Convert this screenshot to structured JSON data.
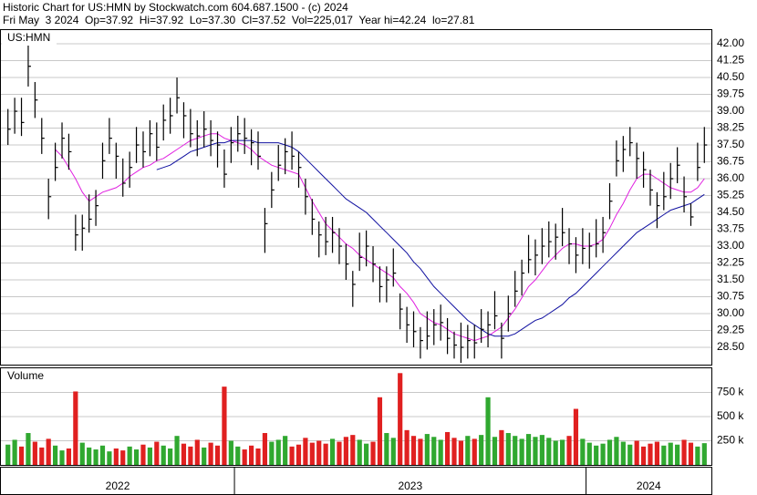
{
  "chart_data": {
    "type": "ohlc",
    "title": "Historic Chart for US:HMN by Stockwatch.com 604.687.1500 - (c) 2024",
    "subtitle": "Fri May  3 2024  Op=37.92  Hi=37.92  Lo=37.30  Cl=37.52  Vol=225,017  Year hi=42.24  lo=27.81",
    "symbol": "US:HMN",
    "high": [
      39.1,
      39.6,
      39.6,
      42.24,
      40.3,
      38.7,
      36.0,
      37.6,
      38.5,
      38.0,
      34.4,
      34.4,
      35.3,
      35.5,
      37.6,
      38.7,
      37.6,
      36.9,
      37.2,
      38.3,
      38.1,
      38.6,
      38.5,
      39.3,
      39.6,
      40.5,
      39.4,
      39.1,
      38.6,
      39.0,
      38.6,
      38.1,
      37.3,
      38.3,
      38.8,
      38.7,
      38.2,
      38.1,
      34.7,
      36.3,
      37.5,
      37.8,
      38.1,
      37.2,
      36.0,
      35.1,
      34.1,
      34.3,
      34.3,
      33.8,
      33.1,
      31.9,
      33.6,
      33.7,
      33.0,
      32.1,
      32.1,
      32.9,
      30.9,
      30.3,
      30.1,
      29.4,
      30.1,
      30.2,
      30.4,
      29.8,
      29.2,
      29.6,
      29.5,
      29.5,
      30.2,
      30.1,
      31.0,
      29.6,
      30.8,
      31.9,
      32.4,
      33.5,
      33.3,
      33.8,
      34.1,
      34.0,
      34.7,
      33.8,
      33.4,
      33.8,
      33.6,
      34.2,
      34.3,
      35.8,
      37.7,
      37.9,
      38.3,
      37.6,
      37.2,
      36.4,
      35.4,
      36.3,
      36.7,
      37.4,
      36.1,
      34.9,
      37.6,
      38.3
    ],
    "low": [
      37.5,
      38.0,
      37.9,
      40.1,
      38.7,
      37.1,
      34.2,
      35.9,
      36.9,
      36.4,
      32.8,
      32.8,
      33.6,
      33.9,
      36.0,
      37.1,
      36.0,
      35.2,
      35.6,
      36.7,
      36.5,
      37.0,
      36.8,
      37.7,
      38.0,
      38.9,
      37.8,
      37.4,
      37.0,
      37.4,
      37.0,
      36.5,
      35.6,
      36.7,
      37.2,
      37.1,
      36.6,
      36.4,
      32.7,
      34.7,
      35.9,
      36.2,
      36.4,
      35.6,
      34.4,
      33.5,
      32.5,
      32.6,
      32.7,
      32.2,
      31.5,
      30.3,
      31.9,
      32.1,
      31.4,
      30.5,
      30.5,
      31.2,
      29.3,
      28.7,
      28.5,
      28.0,
      28.4,
      28.6,
      28.8,
      28.2,
      28.0,
      27.81,
      28.0,
      28.0,
      28.7,
      28.5,
      29.3,
      28.0,
      29.2,
      30.3,
      30.8,
      31.8,
      31.7,
      32.2,
      32.5,
      32.4,
      33.0,
      32.2,
      31.8,
      32.2,
      32.0,
      32.5,
      32.7,
      34.2,
      36.1,
      36.3,
      37.0,
      36.0,
      35.6,
      34.8,
      33.8,
      34.6,
      35.1,
      35.8,
      34.5,
      33.9,
      35.9,
      36.7
    ],
    "close": [
      38.2,
      39.0,
      38.5,
      41.0,
      39.5,
      37.8,
      35.2,
      36.5,
      37.8,
      37.2,
      33.5,
      33.8,
      34.2,
      34.8,
      36.8,
      37.8,
      37.0,
      35.8,
      36.5,
      37.5,
      37.2,
      38.0,
      37.4,
      38.6,
      38.8,
      39.6,
      38.8,
      38.0,
      37.9,
      38.2,
      37.7,
      37.5,
      36.2,
      37.6,
      38.0,
      37.8,
      37.6,
      37.0,
      34.0,
      35.5,
      36.6,
      37.2,
      37.0,
      36.5,
      35.2,
      34.2,
      33.5,
      33.2,
      33.6,
      33.0,
      32.2,
      31.3,
      32.5,
      33.0,
      32.2,
      31.2,
      31.5,
      31.8,
      30.2,
      29.5,
      29.2,
      28.8,
      29.0,
      29.5,
      29.6,
      28.9,
      28.6,
      28.5,
      28.8,
      28.7,
      29.3,
      29.5,
      29.9,
      28.9,
      30.0,
      31.0,
      31.8,
      32.4,
      32.6,
      33.0,
      33.2,
      33.4,
      33.6,
      33.1,
      32.6,
      32.9,
      33.0,
      33.1,
      33.6,
      35.0,
      36.8,
      37.3,
      37.6,
      36.9,
      36.4,
      35.5,
      34.8,
      35.2,
      36.0,
      36.6,
      35.2,
      34.3,
      36.5,
      37.5
    ],
    "bar_color": "#000000",
    "series": [
      {
        "color": "#e020e0",
        "values": [
          null,
          null,
          null,
          null,
          null,
          null,
          null,
          37.3,
          37.0,
          36.5,
          36.0,
          35.4,
          35.0,
          35.2,
          35.4,
          35.5,
          35.6,
          35.8,
          36.1,
          36.3,
          36.5,
          36.6,
          36.8,
          36.9,
          37.1,
          37.3,
          37.5,
          37.7,
          37.8,
          37.9,
          38.0,
          38.0,
          37.8,
          37.7,
          37.6,
          37.5,
          37.3,
          37.0,
          36.8,
          36.6,
          36.5,
          36.4,
          36.3,
          36.2,
          35.6,
          35.0,
          34.5,
          34.0,
          33.7,
          33.4,
          33.1,
          32.9,
          32.6,
          32.4,
          32.2,
          32.0,
          31.8,
          31.6,
          31.2,
          30.9,
          30.5,
          30.0,
          29.8,
          29.6,
          29.5,
          29.3,
          29.1,
          29.0,
          28.9,
          28.8,
          28.9,
          29.0,
          29.2,
          29.4,
          29.8,
          30.2,
          30.7,
          31.2,
          31.5,
          31.9,
          32.3,
          32.6,
          32.9,
          33.1,
          33.1,
          33.0,
          33.0,
          33.1,
          33.3,
          33.8,
          34.4,
          34.9,
          35.5,
          36.0,
          36.2,
          36.2,
          36.0,
          35.8,
          35.6,
          35.5,
          35.4,
          35.4,
          35.6,
          36.0
        ]
      },
      {
        "color": "#1010a0",
        "values": [
          null,
          null,
          null,
          null,
          null,
          null,
          null,
          null,
          null,
          null,
          null,
          null,
          null,
          null,
          null,
          null,
          null,
          null,
          null,
          null,
          null,
          null,
          36.4,
          36.5,
          36.6,
          36.8,
          37.0,
          37.2,
          37.3,
          37.4,
          37.5,
          37.6,
          37.6,
          37.7,
          37.7,
          37.7,
          37.7,
          37.6,
          37.6,
          37.6,
          37.6,
          37.5,
          37.4,
          37.2,
          36.9,
          36.6,
          36.3,
          36.0,
          35.7,
          35.4,
          35.1,
          34.9,
          34.7,
          34.5,
          34.2,
          33.9,
          33.6,
          33.3,
          33.0,
          32.7,
          32.3,
          32.0,
          31.6,
          31.2,
          30.9,
          30.6,
          30.3,
          30.0,
          29.7,
          29.5,
          29.3,
          29.1,
          29.0,
          29.0,
          29.0,
          29.1,
          29.3,
          29.5,
          29.7,
          29.8,
          30.0,
          30.2,
          30.4,
          30.7,
          30.9,
          31.2,
          31.5,
          31.8,
          32.1,
          32.4,
          32.7,
          33.0,
          33.3,
          33.6,
          33.8,
          34.0,
          34.2,
          34.4,
          34.6,
          34.7,
          34.8,
          34.9,
          35.1,
          35.3
        ]
      }
    ],
    "ylim": [
      27.73,
      42.61
    ],
    "yticks": [
      {
        "value": 42,
        "label": "42.00"
      },
      41.25,
      {
        "value": 40.5,
        "label": "40.50"
      },
      39.75,
      {
        "value": 39,
        "label": "39.00"
      },
      38.25,
      {
        "value": 37.5,
        "label": "37.50"
      },
      36.75,
      {
        "value": 36,
        "label": "36.00"
      },
      35.25,
      {
        "value": 34.5,
        "label": "34.50"
      },
      33.75,
      {
        "value": 33,
        "label": "33.00"
      },
      32.25,
      {
        "value": 31.5,
        "label": "31.50"
      },
      30.75,
      {
        "value": 30,
        "label": "30.00"
      },
      29.25,
      {
        "value": 28.5,
        "label": "28.50"
      }
    ],
    "grid": true,
    "volume": {
      "label": "Volume",
      "up_color": "#30a830",
      "down_color": "#e02020",
      "values": [
        210000,
        260000,
        190000,
        330000,
        240000,
        180000,
        270000,
        200000,
        150000,
        170000,
        760000,
        230000,
        180000,
        160000,
        200000,
        140000,
        170000,
        150000,
        190000,
        160000,
        210000,
        180000,
        240000,
        200000,
        170000,
        300000,
        220000,
        190000,
        260000,
        180000,
        230000,
        200000,
        810000,
        250000,
        190000,
        160000,
        200000,
        170000,
        330000,
        240000,
        260000,
        300000,
        190000,
        210000,
        280000,
        230000,
        250000,
        220000,
        270000,
        240000,
        290000,
        310000,
        260000,
        220000,
        240000,
        700000,
        330000,
        280000,
        950000,
        360000,
        300000,
        270000,
        320000,
        290000,
        260000,
        340000,
        280000,
        250000,
        300000,
        270000,
        310000,
        700000,
        290000,
        360000,
        330000,
        300000,
        270000,
        320000,
        290000,
        310000,
        280000,
        250000,
        260000,
        300000,
        580000,
        270000,
        230000,
        200000,
        220000,
        260000,
        290000,
        240000,
        210000,
        250000,
        190000,
        220000,
        240000,
        200000,
        230000,
        210000,
        260000,
        230000,
        190000,
        225017
      ],
      "ylim": [
        0,
        1000000
      ],
      "yticks": [
        {
          "value": 250000,
          "label": "250 k"
        },
        {
          "value": 500000,
          "label": "500 k"
        },
        {
          "value": 750000,
          "label": "750 k"
        }
      ]
    },
    "years": [
      "2022",
      "2023",
      "2024"
    ],
    "year_starts": [
      0,
      34,
      86
    ]
  }
}
